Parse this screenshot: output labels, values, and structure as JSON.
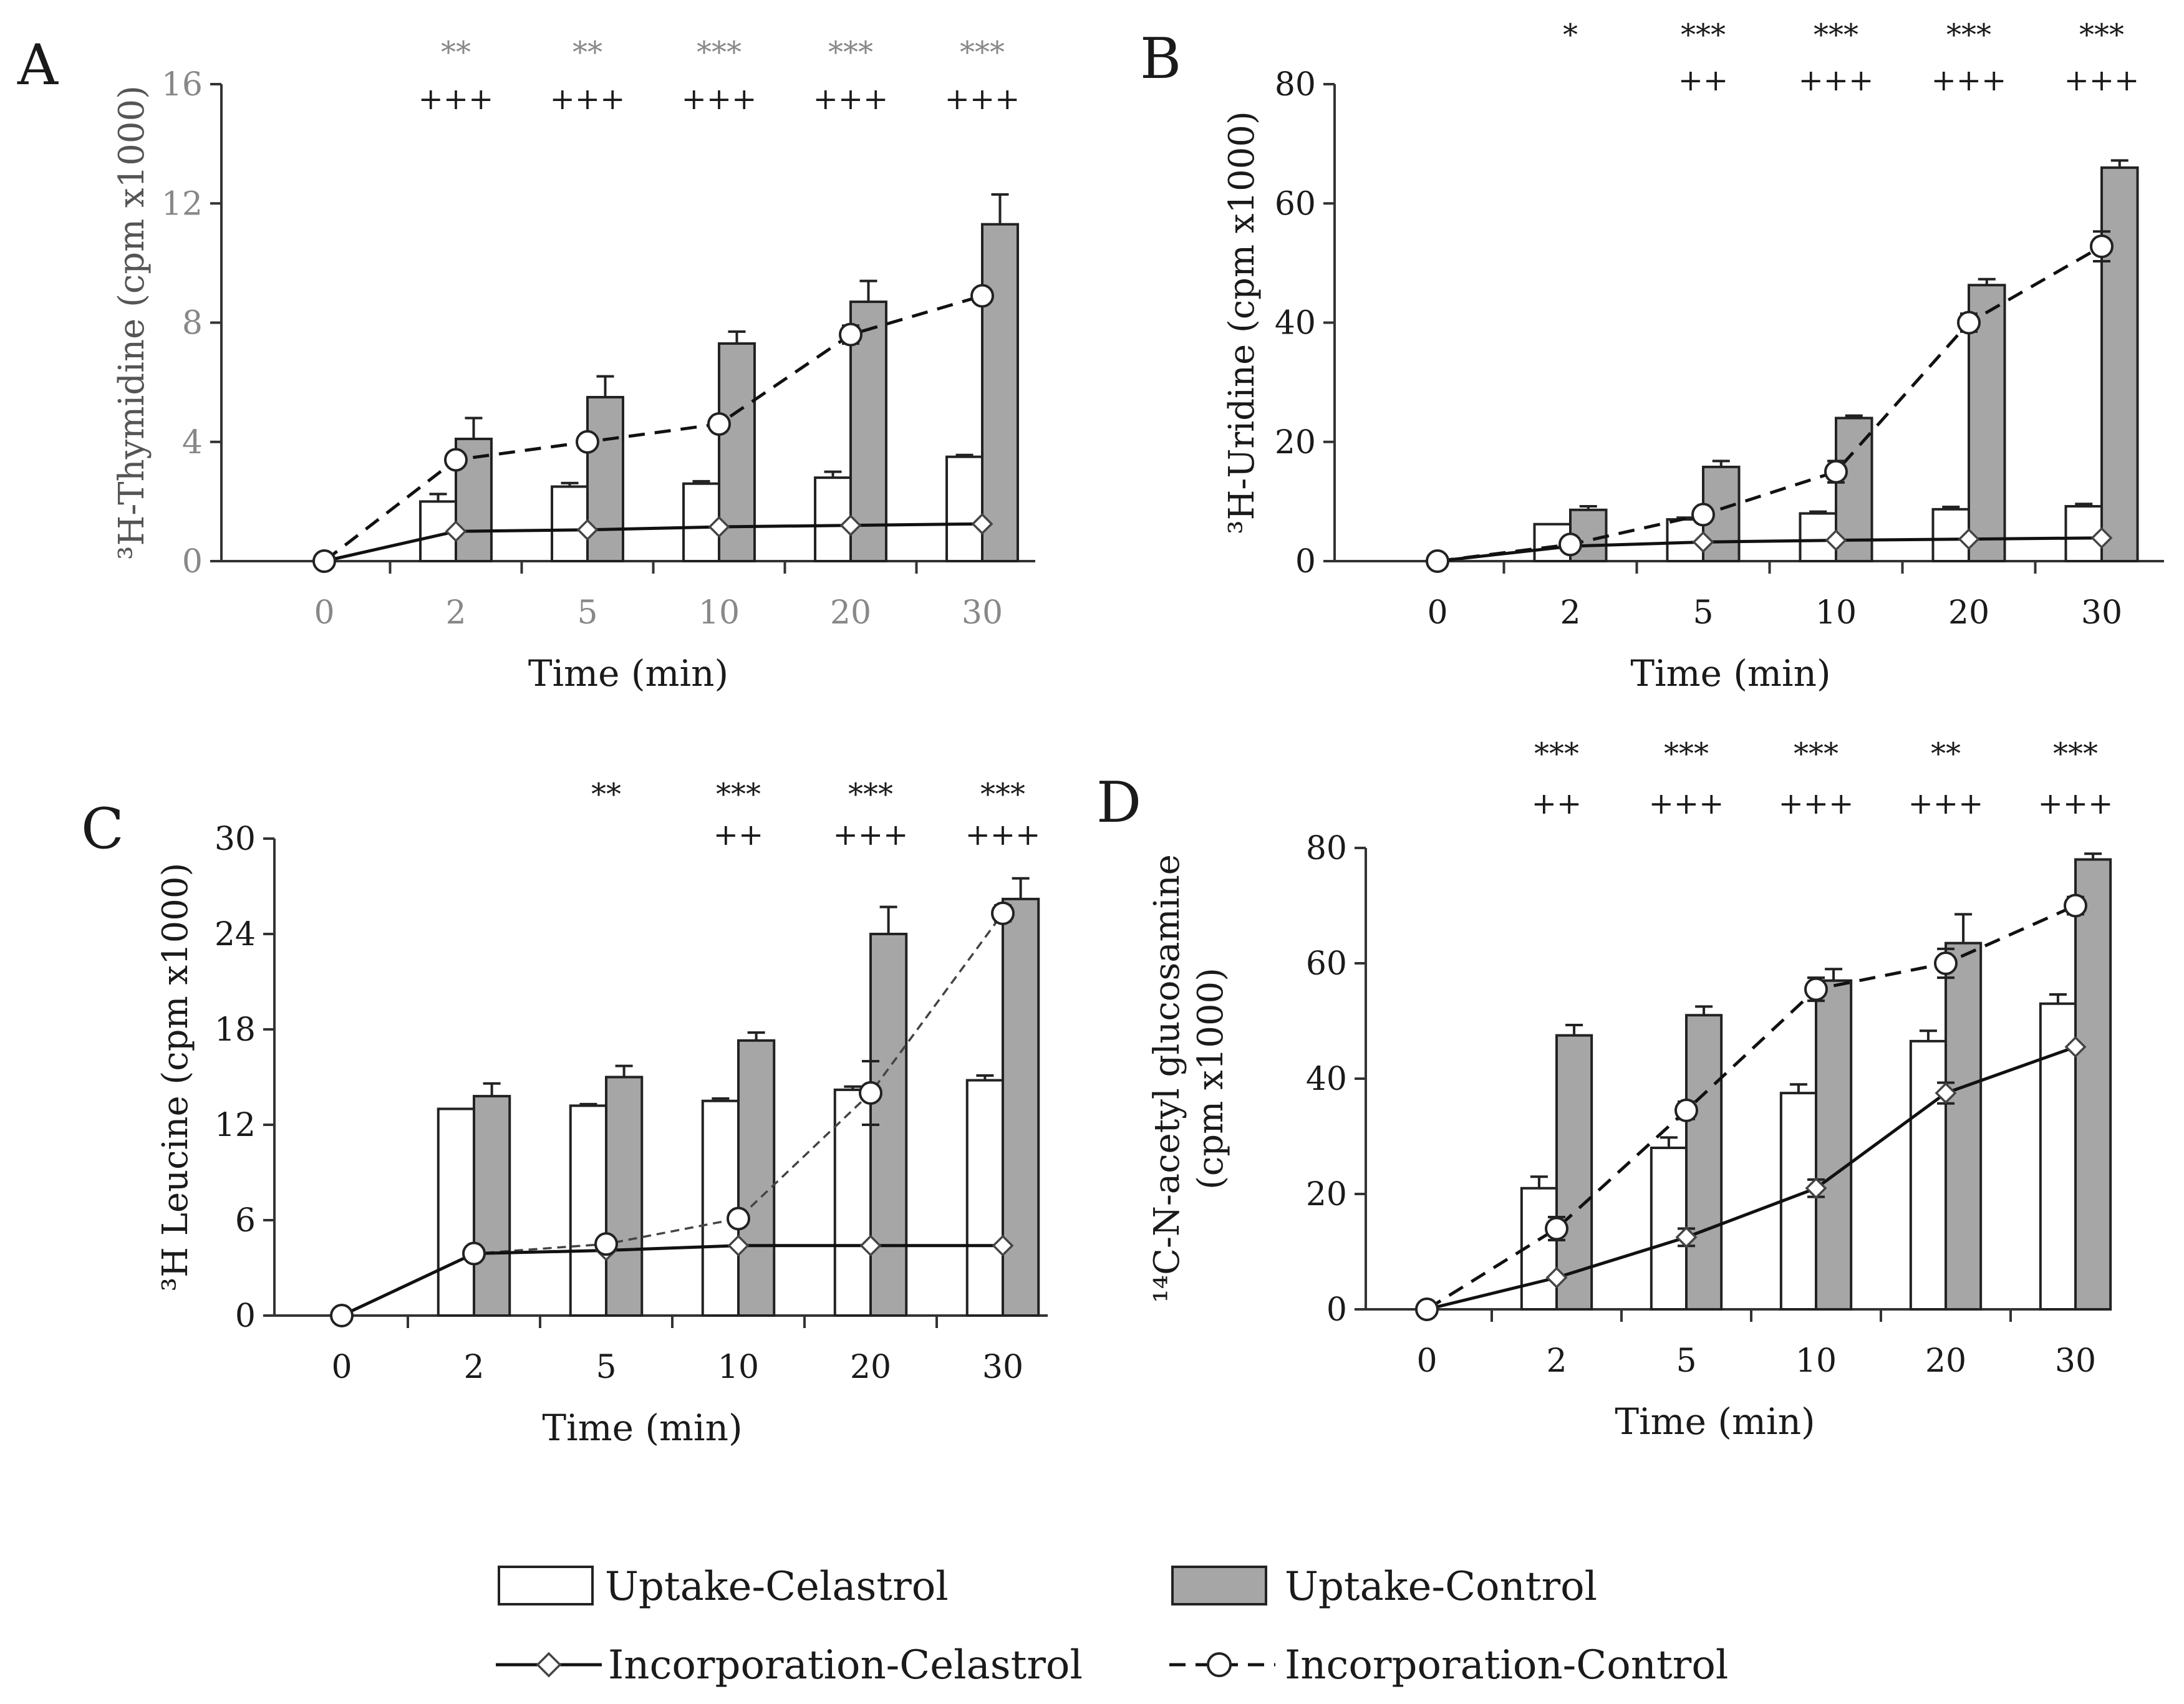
{
  "chart_data": [
    {
      "type": "bar",
      "panel_letter": "A",
      "title": "",
      "xlabel": "Time (min)",
      "ylabel": "³H-Thymidine (cpm x1000)",
      "categories": [
        "0",
        "2",
        "5",
        "10",
        "20",
        "30"
      ],
      "ylim": [
        0,
        16
      ],
      "yticks": [
        0,
        4,
        8,
        12,
        16
      ],
      "tick_color": "#888888",
      "sig_color": "#888888",
      "series": [
        {
          "name": "Uptake-Celastrol",
          "kind": "bar",
          "values": [
            null,
            2.0,
            2.5,
            2.6,
            2.8,
            3.5
          ],
          "errors": [
            null,
            0.25,
            0.12,
            0.08,
            0.2,
            0.06
          ]
        },
        {
          "name": "Uptake-Control",
          "kind": "bar",
          "values": [
            null,
            4.1,
            5.5,
            7.3,
            8.7,
            11.3
          ],
          "errors": [
            null,
            0.7,
            0.7,
            0.4,
            0.7,
            1.0
          ]
        },
        {
          "name": "Incorporation-Celastrol",
          "kind": "line",
          "values": [
            0,
            1.0,
            1.05,
            1.15,
            1.2,
            1.25
          ],
          "errors": [
            0,
            0,
            0,
            0,
            0,
            0
          ]
        },
        {
          "name": "Incorporation-Control",
          "kind": "line",
          "values": [
            0,
            3.4,
            4.0,
            4.6,
            7.6,
            8.9
          ],
          "errors": [
            0,
            0,
            0,
            0,
            0.3,
            0
          ]
        }
      ],
      "sig_top": [
        "",
        "**",
        "**",
        "***",
        "***",
        "***"
      ],
      "sig_bottom": [
        "",
        "+++",
        "+++",
        "+++",
        "+++",
        "+++"
      ]
    },
    {
      "type": "bar",
      "panel_letter": "B",
      "title": "",
      "xlabel": "Time (min)",
      "ylabel": "³H-Uridine (cpm x1000)",
      "categories": [
        "0",
        "2",
        "5",
        "10",
        "20",
        "30"
      ],
      "ylim": [
        0,
        80
      ],
      "yticks": [
        0,
        20,
        40,
        60,
        80
      ],
      "tick_color": "#1a1a1a",
      "sig_color": "#1a1a1a",
      "series": [
        {
          "name": "Uptake-Celastrol",
          "kind": "bar",
          "values": [
            null,
            6.2,
            7.0,
            8.0,
            8.7,
            9.2
          ],
          "errors": [
            null,
            0,
            0.3,
            0.3,
            0.4,
            0.4
          ]
        },
        {
          "name": "Uptake-Control",
          "kind": "bar",
          "values": [
            null,
            8.6,
            15.8,
            24.0,
            46.3,
            66.0
          ],
          "errors": [
            null,
            0.6,
            1.0,
            0.4,
            1.0,
            1.2
          ]
        },
        {
          "name": "Incorporation-Celastrol",
          "kind": "line",
          "values": [
            0,
            2.5,
            3.2,
            3.5,
            3.7,
            3.9
          ],
          "errors": [
            0,
            0,
            0,
            0,
            0,
            0
          ]
        },
        {
          "name": "Incorporation-Control",
          "kind": "line",
          "values": [
            0,
            2.8,
            7.8,
            15.0,
            40.0,
            52.8
          ],
          "errors": [
            0,
            0,
            0,
            1.8,
            1.5,
            2.5
          ]
        }
      ],
      "sig_top": [
        "",
        "*",
        "***",
        "***",
        "***",
        "***"
      ],
      "sig_bottom": [
        "",
        "",
        "++",
        "+++",
        "+++",
        "+++"
      ]
    },
    {
      "type": "bar",
      "panel_letter": "C",
      "title": "",
      "xlabel": "Time (min)",
      "ylabel": "³H Leucine (cpm x1000)",
      "categories": [
        "0",
        "2",
        "5",
        "10",
        "20",
        "30"
      ],
      "ylim": [
        0,
        30
      ],
      "yticks": [
        0,
        6,
        12,
        18,
        24,
        30
      ],
      "tick_color": "#1a1a1a",
      "sig_color": "#1a1a1a",
      "series": [
        {
          "name": "Uptake-Celastrol",
          "kind": "bar",
          "values": [
            null,
            13.0,
            13.2,
            13.5,
            14.2,
            14.8
          ],
          "errors": [
            null,
            0,
            0.1,
            0.15,
            0.2,
            0.3
          ]
        },
        {
          "name": "Uptake-Control",
          "kind": "bar",
          "values": [
            null,
            13.8,
            15.0,
            17.3,
            24.0,
            26.2
          ],
          "errors": [
            null,
            0.8,
            0.7,
            0.5,
            1.7,
            1.3
          ]
        },
        {
          "name": "Incorporation-Celastrol",
          "kind": "line",
          "values": [
            0,
            3.9,
            4.1,
            4.4,
            4.4,
            4.4
          ],
          "errors": [
            0,
            0,
            0,
            0,
            0,
            0
          ]
        },
        {
          "name": "Incorporation-Control",
          "kind": "line",
          "values": [
            0,
            3.9,
            4.5,
            6.1,
            14.0,
            25.3
          ],
          "errors": [
            0,
            0,
            0,
            0,
            2.0,
            0.5
          ]
        }
      ],
      "sig_top": [
        "",
        "",
        "**",
        "***",
        "***",
        "***"
      ],
      "sig_bottom": [
        "",
        "",
        "",
        "++",
        "+++",
        "+++"
      ]
    },
    {
      "type": "bar",
      "panel_letter": "D",
      "title": "",
      "xlabel": "Time (min)",
      "ylabel": "¹⁴C-N-acetyl glucosamine",
      "ylabel2": "(cpm x1000)",
      "categories": [
        "0",
        "2",
        "5",
        "10",
        "20",
        "30"
      ],
      "ylim": [
        0,
        80
      ],
      "yticks": [
        0,
        20,
        40,
        60,
        80
      ],
      "tick_color": "#1a1a1a",
      "sig_color": "#1a1a1a",
      "series": [
        {
          "name": "Uptake-Celastrol",
          "kind": "bar",
          "values": [
            null,
            21.0,
            28.0,
            37.5,
            46.5,
            53.0
          ],
          "errors": [
            null,
            2.0,
            1.8,
            1.5,
            1.8,
            1.6
          ]
        },
        {
          "name": "Uptake-Control",
          "kind": "bar",
          "values": [
            null,
            47.5,
            51.0,
            57.0,
            63.5,
            78.0
          ],
          "errors": [
            null,
            1.8,
            1.5,
            2.0,
            5.0,
            1.0
          ]
        },
        {
          "name": "Incorporation-Celastrol",
          "kind": "line",
          "values": [
            0,
            5.5,
            12.5,
            21.0,
            37.5,
            45.5
          ],
          "errors": [
            0,
            0,
            1.5,
            1.5,
            1.8,
            0
          ]
        },
        {
          "name": "Incorporation-Control",
          "kind": "line",
          "values": [
            0,
            14.0,
            34.5,
            55.5,
            60.0,
            70.0
          ],
          "errors": [
            0,
            2.0,
            1.5,
            2.0,
            2.5,
            1.5
          ]
        }
      ],
      "sig_top": [
        "",
        "***",
        "***",
        "***",
        "**",
        "***"
      ],
      "sig_bottom": [
        "",
        "++",
        "+++",
        "+++",
        "+++",
        "+++"
      ]
    }
  ],
  "legend": {
    "items": [
      {
        "key": "uptake_cel",
        "label": "Uptake-Celastrol"
      },
      {
        "key": "uptake_con",
        "label": "Uptake-Control"
      },
      {
        "key": "inc_cel",
        "label": "Incorporation-Celastrol"
      },
      {
        "key": "inc_con",
        "label": "Incorporation-Control"
      }
    ]
  },
  "colors": {
    "control_bar": "#a6a6a6",
    "celastrol_bar": "#ffffff",
    "ink": "#1a1a1a"
  }
}
